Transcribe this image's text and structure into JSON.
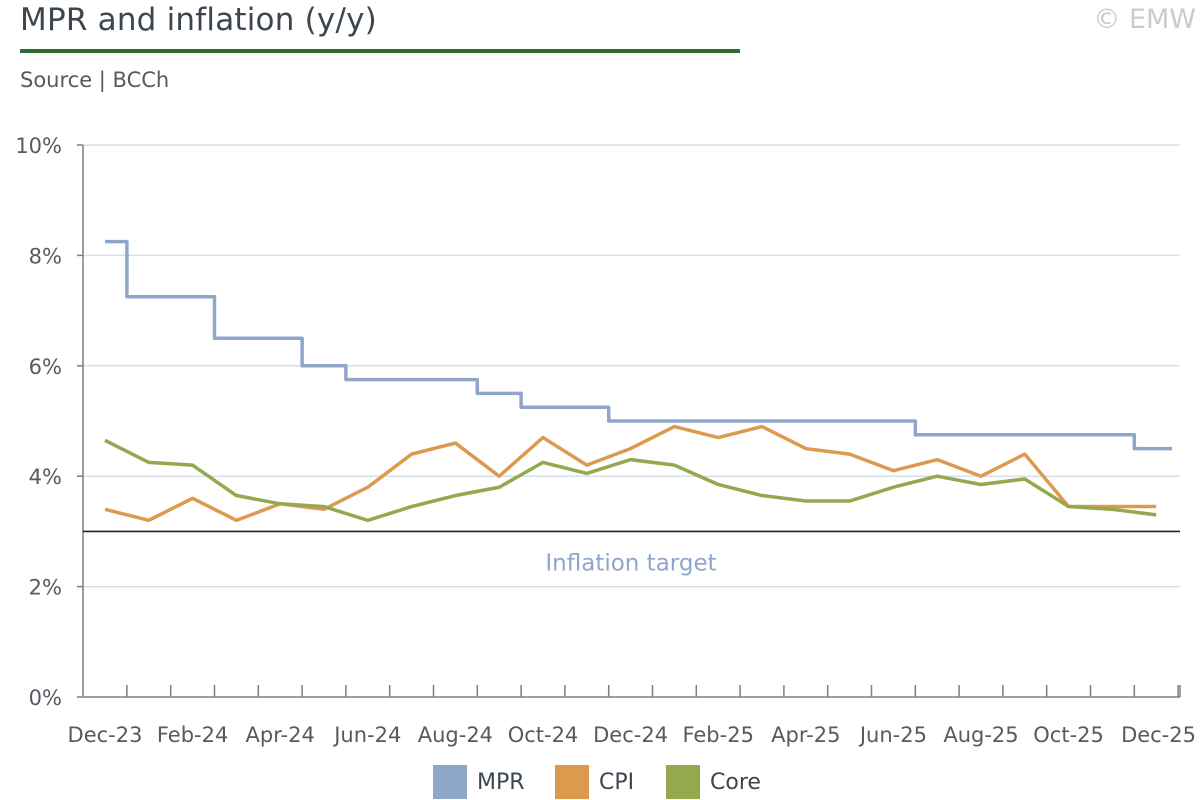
{
  "header": {
    "title": "MPR and inflation (y/y)",
    "source": "Source | BCCh",
    "copyright": "© EMW"
  },
  "colors": {
    "title_rule": "#2e6b2e",
    "mpr": "#8fa6cb",
    "cpi": "#dd9a4e",
    "core": "#93a84f",
    "target_line": "#222222",
    "target_label": "#8fa6cb",
    "grid": "#d6e0ea",
    "axis": "#7a7f85"
  },
  "chart_data": {
    "type": "line",
    "x": [
      "Dec-23",
      "Jan-24",
      "Feb-24",
      "Mar-24",
      "Apr-24",
      "May-24",
      "Jun-24",
      "Jul-24",
      "Aug-24",
      "Sep-24",
      "Oct-24",
      "Nov-24",
      "Dec-24",
      "Jan-25",
      "Feb-25",
      "Mar-25",
      "Apr-25",
      "May-25",
      "Jun-25",
      "Jul-25",
      "Aug-25",
      "Sep-25",
      "Oct-25",
      "Nov-25",
      "Dec-25"
    ],
    "tick_labels": [
      "Dec-23",
      "Feb-24",
      "Apr-24",
      "Jun-24",
      "Aug-24",
      "Oct-24",
      "Dec-24",
      "Feb-25",
      "Apr-25",
      "Jun-25",
      "Aug-25",
      "Oct-25",
      "Dec-25"
    ],
    "series": [
      {
        "name": "MPR",
        "style": "step",
        "values": [
          8.25,
          7.25,
          7.25,
          6.5,
          6.5,
          6.0,
          5.75,
          5.75,
          5.75,
          5.5,
          5.25,
          5.25,
          5.0,
          5.0,
          5.0,
          5.0,
          5.0,
          5.0,
          5.0,
          4.75,
          4.75,
          4.75,
          4.75,
          4.75,
          4.5
        ]
      },
      {
        "name": "CPI",
        "style": "line",
        "values": [
          3.4,
          3.2,
          3.6,
          3.2,
          3.5,
          3.4,
          3.8,
          4.4,
          4.6,
          4.0,
          4.7,
          4.2,
          4.5,
          4.9,
          4.7,
          4.9,
          4.5,
          4.4,
          4.1,
          4.3,
          4.0,
          4.4,
          3.45,
          3.45,
          3.45
        ]
      },
      {
        "name": "Core",
        "style": "line",
        "values": [
          4.65,
          4.25,
          4.2,
          3.65,
          3.5,
          3.45,
          3.2,
          3.45,
          3.65,
          3.8,
          4.25,
          4.05,
          4.3,
          4.2,
          3.85,
          3.65,
          3.55,
          3.55,
          3.8,
          4.0,
          3.85,
          3.95,
          3.45,
          3.4,
          3.3
        ]
      }
    ],
    "reference_line": {
      "value": 3.0,
      "label": "Inflation target"
    },
    "ylim": [
      0,
      10
    ],
    "yticks": [
      "0%",
      "2%",
      "4%",
      "6%",
      "8%",
      "10%"
    ],
    "ytick_values": [
      0,
      2,
      4,
      6,
      8,
      10
    ],
    "grid": true,
    "legend_position": "bottom"
  }
}
